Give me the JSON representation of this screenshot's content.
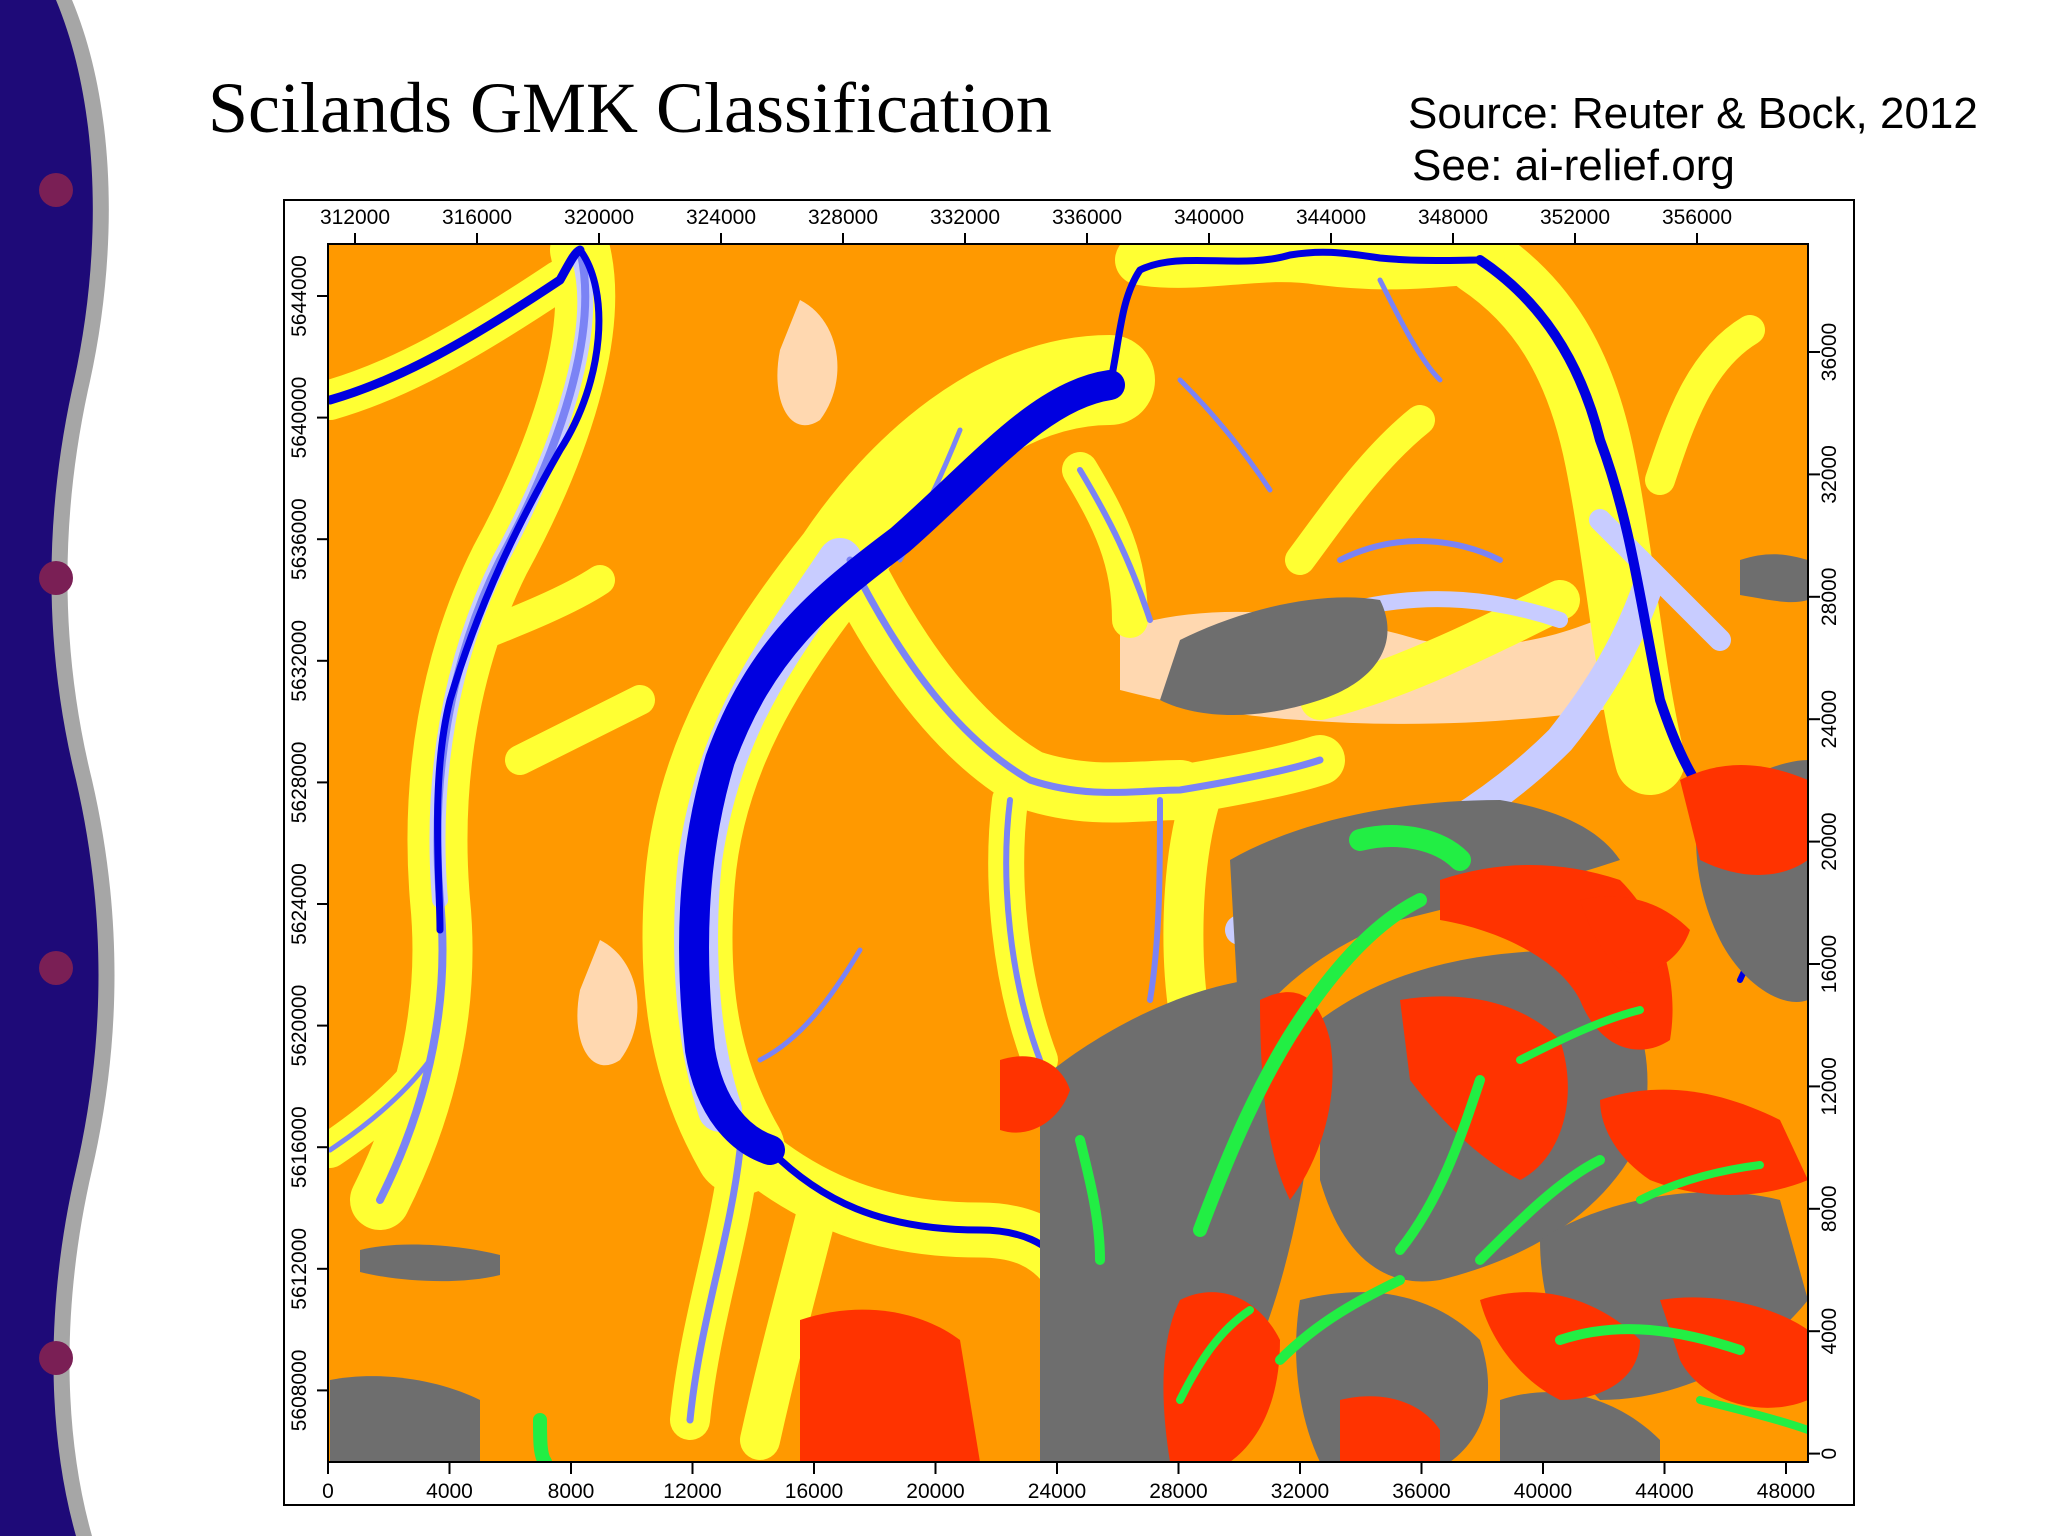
{
  "slide": {
    "title": "Scilands GMK Classification",
    "source": "Source: Reuter & Bock, 2012",
    "see": "See: ai-relief.org"
  },
  "map": {
    "top_axis_labels": [
      "312000",
      "316000",
      "320000",
      "324000",
      "328000",
      "332000",
      "336000",
      "340000",
      "344000",
      "348000",
      "352000",
      "356000"
    ],
    "bottom_axis_labels": [
      "0",
      "4000",
      "8000",
      "12000",
      "16000",
      "20000",
      "24000",
      "28000",
      "32000",
      "36000",
      "40000",
      "44000",
      "48000"
    ],
    "left_axis_labels": [
      "5644000",
      "5640000",
      "5636000",
      "5632000",
      "5628000",
      "5624000",
      "5620000",
      "5616000",
      "5612000",
      "5608000"
    ],
    "right_axis_labels": [
      "36000",
      "32000",
      "28000",
      "24000",
      "20000",
      "16000",
      "12000",
      "8000",
      "4000",
      "0"
    ],
    "class_colors": {
      "plateau": "#ff9900",
      "slope": "#ffff33",
      "gentle_slope": "#ffd8b0",
      "valley_floor": "#c8ccff",
      "river_channel": "#0000e0",
      "valley_medium": "#7b83f5",
      "mountain_ridge": "#6e6e6e",
      "steep_slope": "#ff3300",
      "high_valley": "#22ee44"
    }
  }
}
